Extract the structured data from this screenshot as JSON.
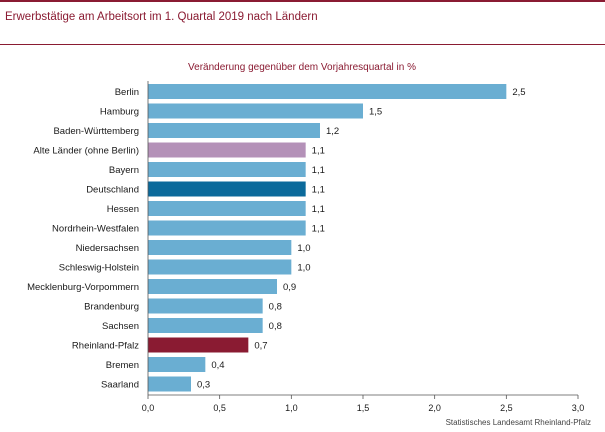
{
  "header": {
    "title": "Erwerbstätige  am  Arbeitsort  im  1.  Quartal  2019  nach Ländern"
  },
  "source": "Statistisches Landesamt Rheinland-Pfalz",
  "colors": {
    "default": "#6aaed2",
    "highlight_germany": "#0b6a9b",
    "highlight_rlp": "#8a1b32",
    "highlight_old_states": "#b491b8",
    "accent": "#8a1b32"
  },
  "chart_data": {
    "type": "bar",
    "orientation": "horizontal",
    "title": "Veränderung gegenüber dem Vorjahresquartal in %",
    "categories": [
      "Berlin",
      "Hamburg",
      "Baden-Württemberg",
      "Alte Länder (ohne Berlin)",
      "Bayern",
      "Deutschland",
      "Hessen",
      "Nordrhein-Westfalen",
      "Niedersachsen",
      "Schleswig-Holstein",
      "Mecklenburg-Vorpommern",
      "Brandenburg",
      "Sachsen",
      "Rheinland-Pfalz",
      "Bremen",
      "Saarland"
    ],
    "values": [
      2.5,
      1.5,
      1.2,
      1.1,
      1.1,
      1.1,
      1.1,
      1.1,
      1.0,
      1.0,
      0.9,
      0.8,
      0.8,
      0.7,
      0.4,
      0.3
    ],
    "value_labels": [
      "2,5",
      "1,5",
      "1,2",
      "1,1",
      "1,1",
      "1,1",
      "1,1",
      "1,1",
      "1,0",
      "1,0",
      "0,9",
      "0,8",
      "0,8",
      "0,7",
      "0,4",
      "0,3"
    ],
    "bar_colors": [
      "default",
      "default",
      "default",
      "highlight_old_states",
      "default",
      "highlight_germany",
      "default",
      "default",
      "default",
      "default",
      "default",
      "default",
      "default",
      "highlight_rlp",
      "default",
      "default"
    ],
    "xlim": [
      0,
      3.0
    ],
    "xticks": [
      0,
      0.5,
      1.0,
      1.5,
      2.0,
      2.5,
      3.0
    ],
    "xtick_labels": [
      "0,0",
      "0,5",
      "1,0",
      "1,5",
      "2,0",
      "2,5",
      "3,0"
    ],
    "grid": false,
    "legend": "none"
  }
}
